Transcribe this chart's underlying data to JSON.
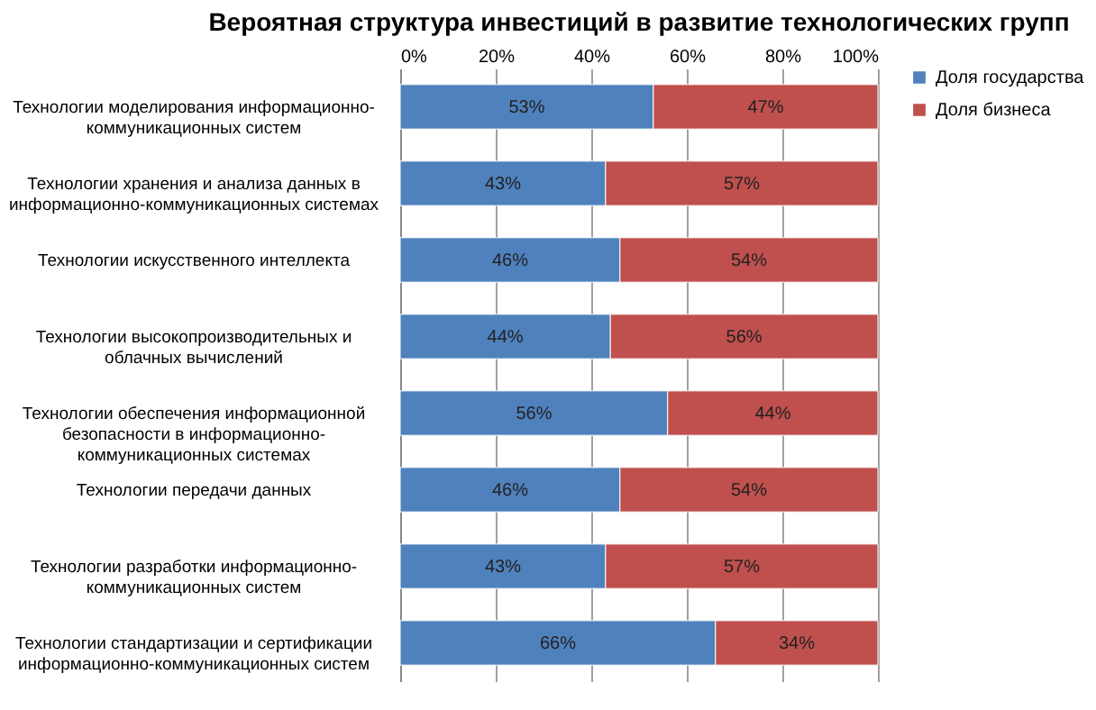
{
  "chart_data": {
    "type": "bar",
    "orientation": "horizontal",
    "stacked": true,
    "title": "Вероятная структура инвестиций в развитие технологических групп",
    "categories": [
      "Технологии моделирования  информационно-коммуникационных  систем",
      "Технологии хранения и анализа данных в информационно-коммуникационных системах",
      "Технологии искусственного интеллекта",
      "Технологии высокопроизводительных  и облачных вычислений",
      "Технологии обеспечения информационной безопасности в информационно-коммуникационных  системах",
      "Технологии передачи данных",
      "Технологии разработки  информационно-коммуникационных  систем",
      "Технологии стандартизации  и сертификации информационно-коммуникационных  систем"
    ],
    "series": [
      {
        "name": "Доля государства",
        "color": "#4f81bd",
        "values": [
          53,
          43,
          46,
          44,
          56,
          46,
          43,
          66
        ],
        "value_labels": [
          "53%",
          "43%",
          "46%",
          "44%",
          "56%",
          "46%",
          "43%",
          "66%"
        ]
      },
      {
        "name": "Доля бизнеса",
        "color": "#c0504d",
        "values": [
          47,
          57,
          54,
          56,
          44,
          54,
          57,
          34
        ],
        "value_labels": [
          "47%",
          "57%",
          "54%",
          "56%",
          "44%",
          "54%",
          "57%",
          "34%"
        ]
      }
    ],
    "xlim": [
      0,
      100
    ],
    "xticks": [
      {
        "value": 0,
        "label": "0%"
      },
      {
        "value": 20,
        "label": "20%"
      },
      {
        "value": 40,
        "label": "40%"
      },
      {
        "value": 60,
        "label": "60%"
      },
      {
        "value": 80,
        "label": "80%"
      },
      {
        "value": 100,
        "label": "100%"
      }
    ],
    "grid": "x",
    "legend": "right"
  }
}
